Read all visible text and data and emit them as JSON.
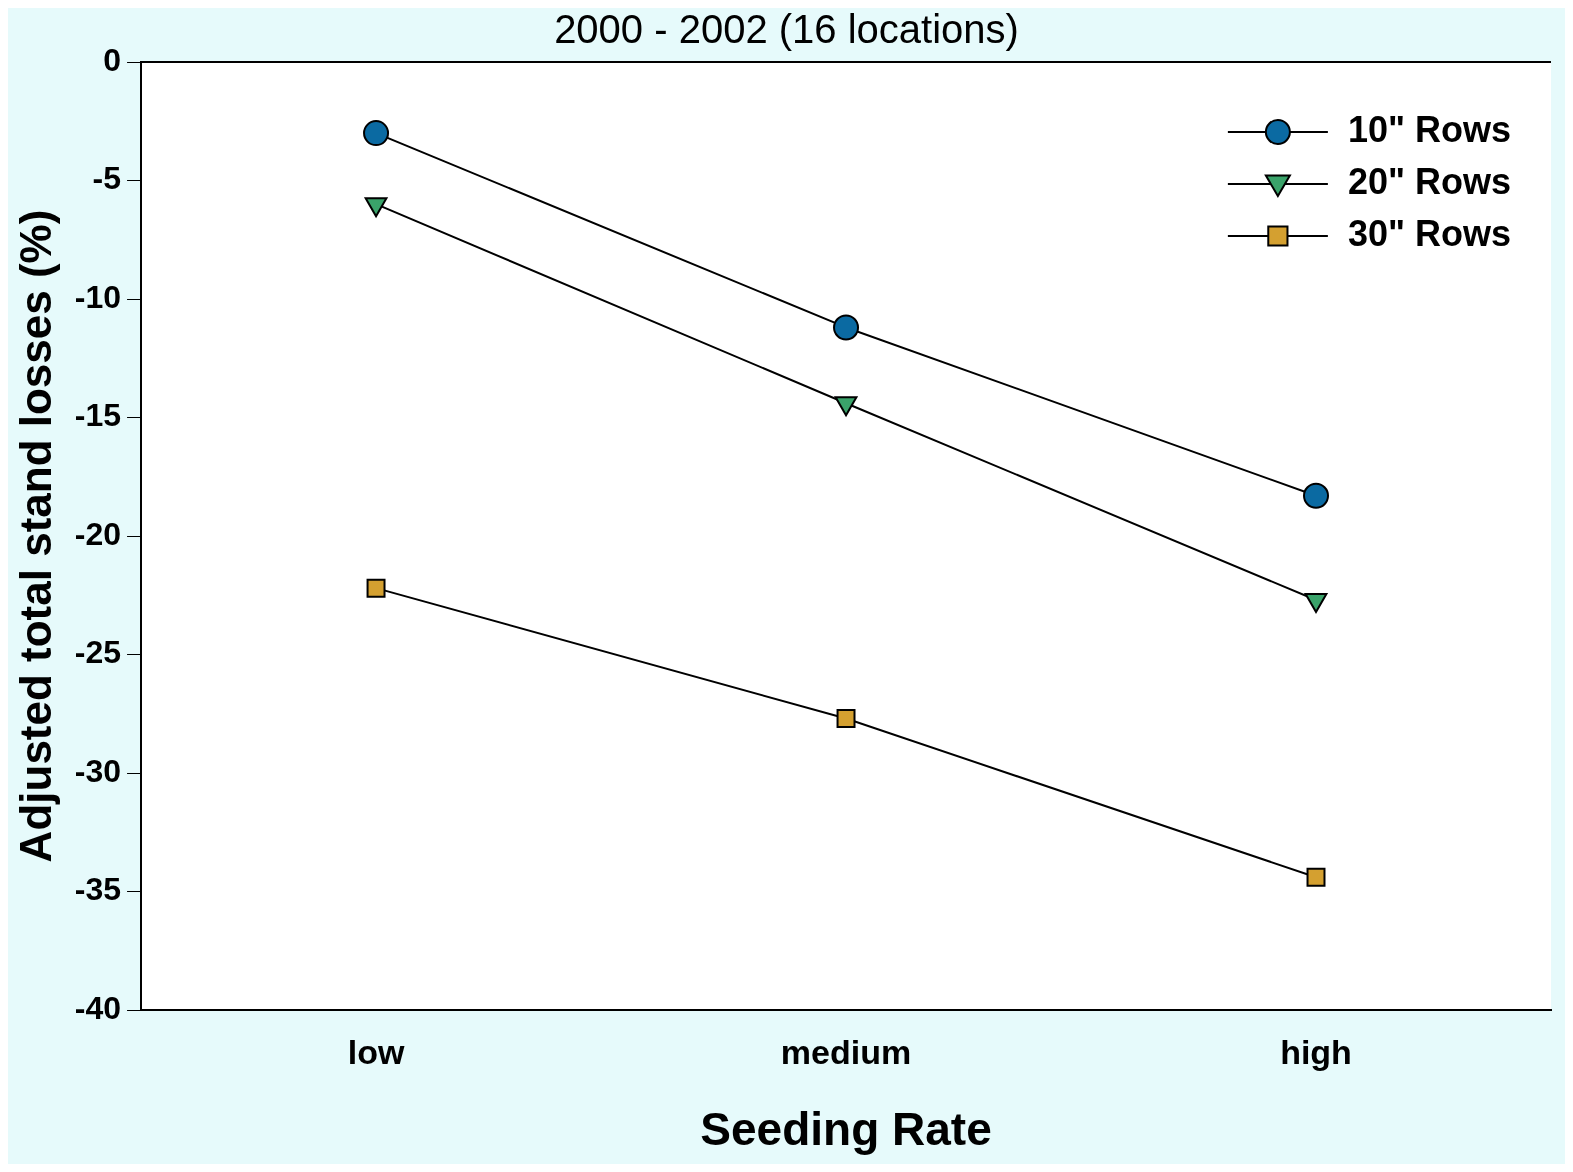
{
  "chart_data": {
    "type": "line",
    "title": "2000 - 2002 (16 locations)",
    "xlabel": "Seeding Rate",
    "ylabel": "Adjusted total stand losses (%)",
    "categories": [
      "low",
      "medium",
      "high"
    ],
    "series": [
      {
        "name": "10\" Rows",
        "color": "#0b6aa2",
        "marker": "circle",
        "values": [
          -3.0,
          -11.2,
          -18.3
        ]
      },
      {
        "name": "20\" Rows",
        "color": "#3aa36a",
        "marker": "triangle",
        "values": [
          -6.0,
          -14.4,
          -22.7
        ]
      },
      {
        "name": "30\" Rows",
        "color": "#d4a030",
        "marker": "square",
        "values": [
          -22.2,
          -27.7,
          -34.4
        ]
      }
    ],
    "ylim": [
      -40,
      0
    ],
    "yticks": [
      -40,
      -35,
      -30,
      -25,
      -20,
      -15,
      -10,
      -5,
      0
    ],
    "grid": false,
    "legend": "top right"
  }
}
